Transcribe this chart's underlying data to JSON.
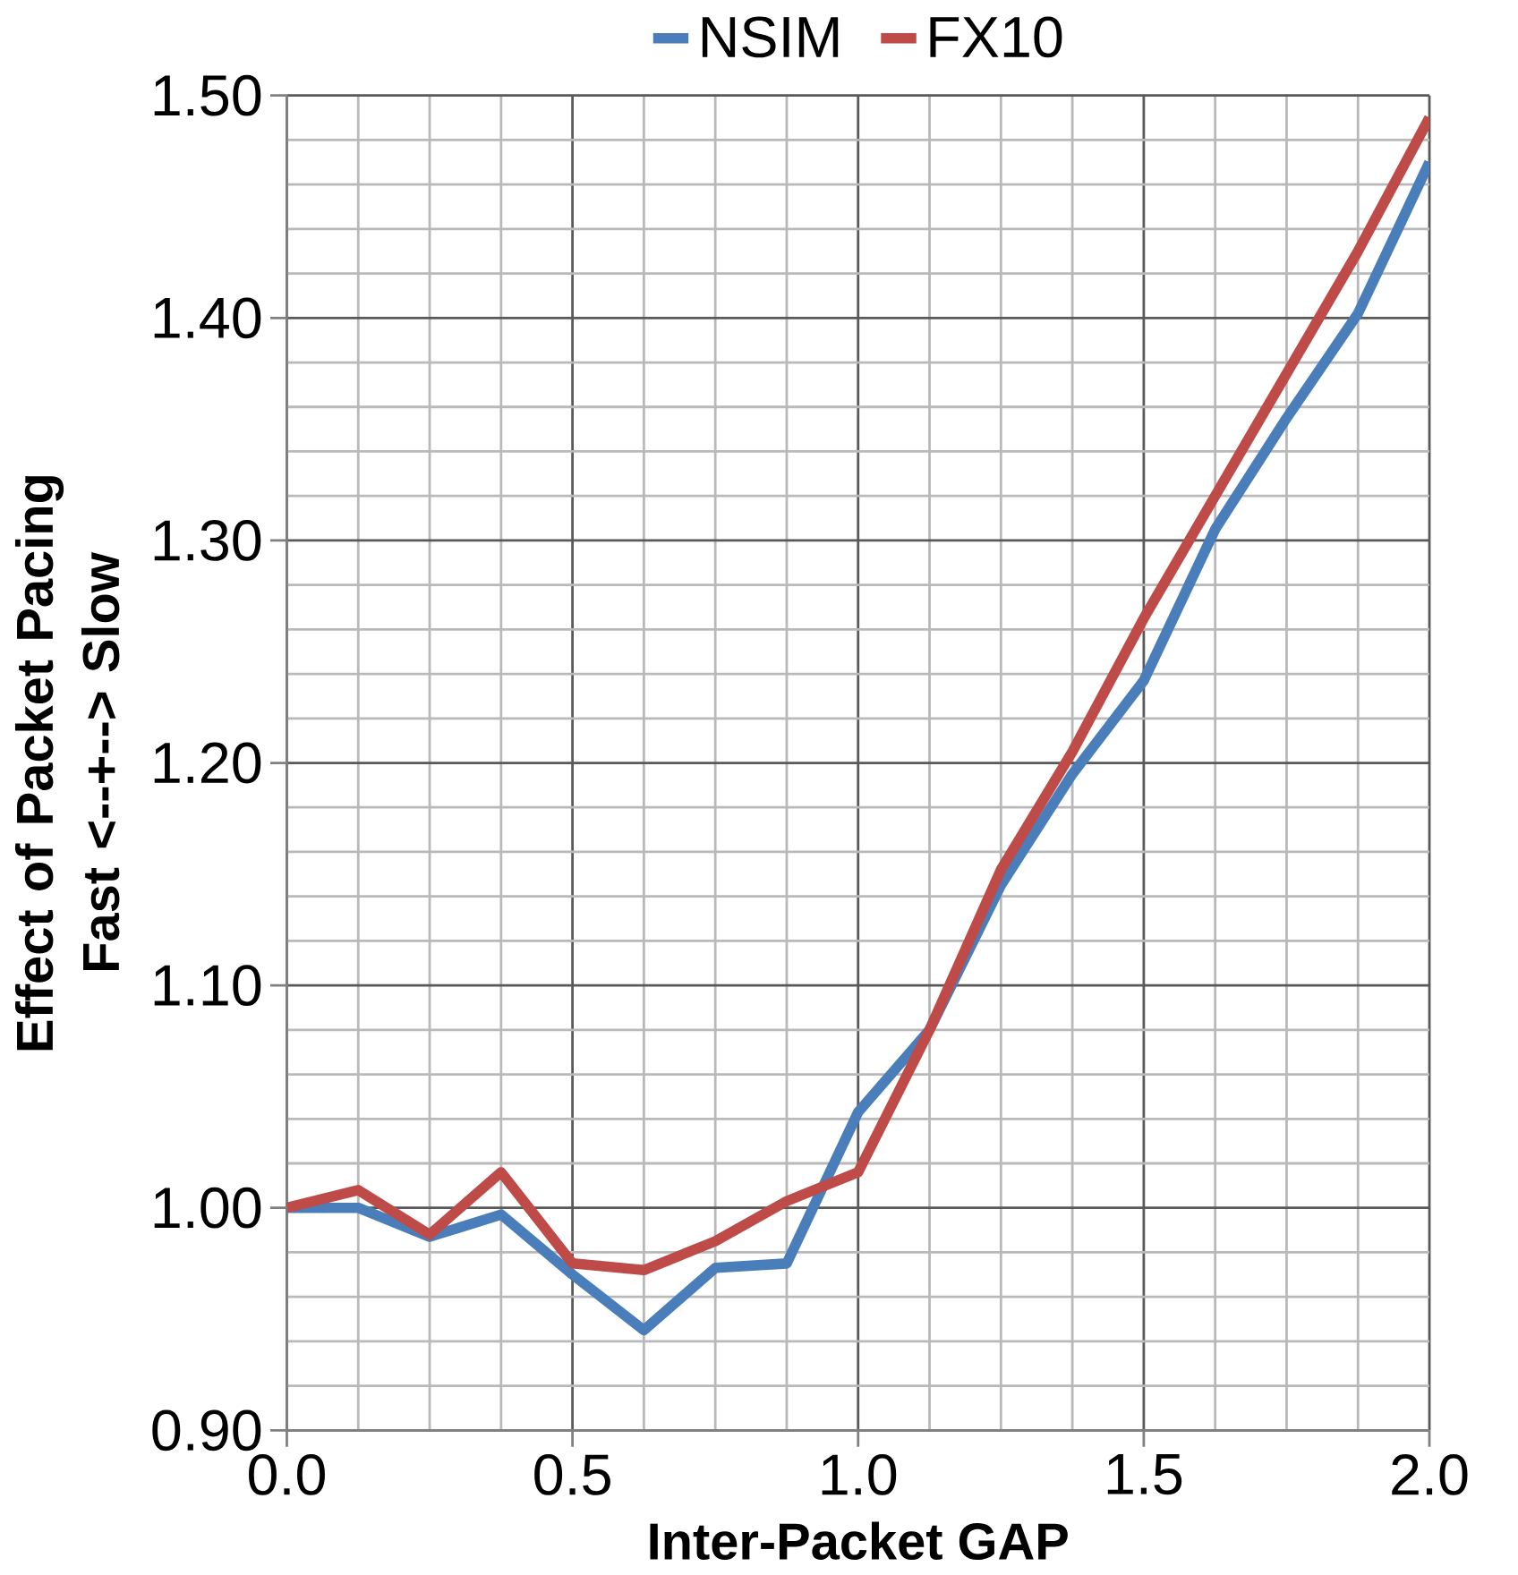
{
  "chart_data": {
    "type": "line",
    "xlabel": "Inter-Packet GAP",
    "ylabel": "Effect of Packet Pacing Fast <--+--> Slow",
    "x": [
      0,
      0.125,
      0.25,
      0.375,
      0.5,
      0.625,
      0.75,
      0.875,
      1.0,
      1.125,
      1.25,
      1.375,
      1.5,
      1.625,
      1.75,
      1.875,
      2.0
    ],
    "series": [
      {
        "name": "NSIM",
        "color": "#4a7ebb",
        "values": [
          1.0,
          1.0,
          0.987,
          0.997,
          0.97,
          0.945,
          0.973,
          0.975,
          1.043,
          1.08,
          1.145,
          1.195,
          1.237,
          1.305,
          1.355,
          1.402,
          1.47
        ]
      },
      {
        "name": "FX10",
        "color": "#be4b48",
        "values": [
          1.0,
          1.008,
          0.988,
          1.016,
          0.975,
          0.972,
          0.985,
          1.003,
          1.016,
          1.08,
          1.152,
          1.205,
          1.265,
          1.32,
          1.375,
          1.43,
          1.49
        ]
      }
    ],
    "xlim": [
      0,
      2.0
    ],
    "ylim": [
      0.9,
      1.5
    ],
    "xticks": [
      {
        "value": 0,
        "label": "0.0"
      },
      {
        "value": 0.5,
        "label": "0.5"
      },
      {
        "value": 1.0,
        "label": "1.0"
      },
      {
        "value": 1.5,
        "label": "1.5"
      },
      {
        "value": 2.0,
        "label": "2.0"
      }
    ],
    "yticks": [
      {
        "value": 0.9,
        "label": "0.90"
      },
      {
        "value": 1.0,
        "label": "1.00"
      },
      {
        "value": 1.1,
        "label": "1.10"
      },
      {
        "value": 1.2,
        "label": "1.20"
      },
      {
        "value": 1.3,
        "label": "1.30"
      },
      {
        "value": 1.4,
        "label": "1.40"
      },
      {
        "value": 1.5,
        "label": "1.50"
      }
    ],
    "grid": true,
    "legend": "top",
    "marker": "none",
    "line_style": "solid"
  }
}
